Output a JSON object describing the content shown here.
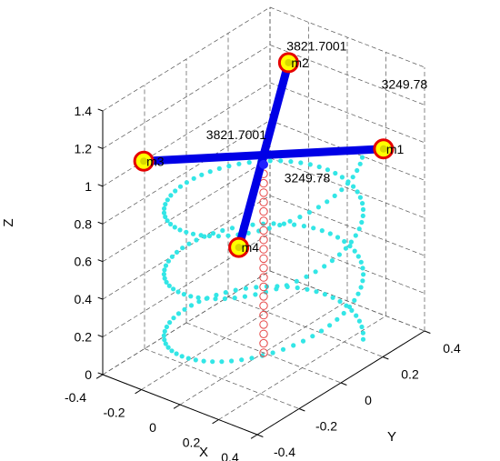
{
  "chart_data": {
    "type": "scatter",
    "projection": "3d",
    "xlabel": "X",
    "ylabel": "Y",
    "zlabel": "Z",
    "xlim": [
      -0.4,
      0.4
    ],
    "ylim": [
      -0.4,
      0.4
    ],
    "zlim": [
      0,
      1.4
    ],
    "xticks": [
      "-0.4",
      "-0.2",
      "0",
      "0.2",
      "0.4"
    ],
    "yticks": [
      "-0.4",
      "-0.2",
      "0",
      "0.2",
      "0.4"
    ],
    "zticks": [
      "0",
      "0.2",
      "0.4",
      "0.6",
      "0.8",
      "1",
      "1.2",
      "1.4"
    ],
    "grid": true,
    "colors": {
      "arm": "#0000e6",
      "trajectory": "#33e6e6",
      "vertical_track": "#e64545",
      "rotor_ring": "#e60000",
      "rotor_fill": "#ffff00"
    },
    "center": {
      "x": 0,
      "y": 0,
      "z": 1.0
    },
    "rotors": [
      {
        "label": "m1",
        "x": 0.35,
        "y": 0.25,
        "z": 1.05
      },
      {
        "label": "m2",
        "x": -0.25,
        "y": 0.35,
        "z": 1.2
      },
      {
        "label": "m3",
        "x": -0.35,
        "y": -0.25,
        "z": 1.05
      },
      {
        "label": "m4",
        "x": 0.25,
        "y": -0.35,
        "z": 0.9
      }
    ],
    "arm_annotations": [
      {
        "text": "3821.7001",
        "x": -0.05,
        "y": 0.3,
        "z": 1.38
      },
      {
        "text": "3249.78",
        "x": 0.35,
        "y": 0.35,
        "z": 1.3
      },
      {
        "text": "3821.7001",
        "x": -0.12,
        "y": -0.02,
        "z": 1.1
      },
      {
        "text": "3249.78",
        "x": 0.28,
        "y": -0.05,
        "z": 1.05
      }
    ],
    "trajectory": {
      "radius": 0.35,
      "z_start": 0.0,
      "z_end": 1.0,
      "turns": 3,
      "points": 180
    },
    "vertical_track": {
      "x": 0,
      "y": 0,
      "z_start": 0.0,
      "z_end": 0.95,
      "points": 20
    }
  }
}
